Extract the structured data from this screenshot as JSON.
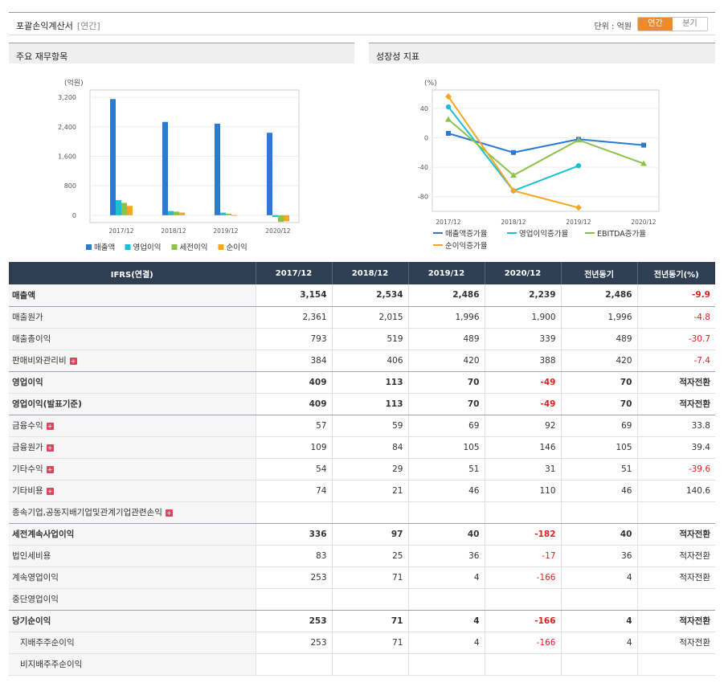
{
  "header": {
    "title": "포괄손익계산서",
    "subtitle": "[연간]",
    "unit": "단위 : 억원",
    "toggle": [
      "연간",
      "분기"
    ],
    "active": "연간"
  },
  "left_panel": {
    "title": "주요 재무항목"
  },
  "right_panel": {
    "title": "성장성 지표"
  },
  "colors": {
    "blue": "#2b7bd6",
    "cyan": "#1dbed6",
    "green": "#8bc34a",
    "orange": "#f5a623",
    "header_bg": "#2f3e52",
    "toggle_active": "#ec8a2e",
    "negative": "#e41e1e"
  },
  "chart_data": [
    {
      "type": "bar",
      "unit_label": "(억원)",
      "categories": [
        "2017/12",
        "2018/12",
        "2019/12",
        "2020/12"
      ],
      "ylim": [
        -200,
        3400
      ],
      "yticks": [
        0,
        800,
        1600,
        2400,
        3200
      ],
      "ytick_labels": [
        "0",
        "800",
        "1,600",
        "2,400",
        "3,200"
      ],
      "series": [
        {
          "name": "매출액",
          "values": [
            3154,
            2534,
            2486,
            2239
          ]
        },
        {
          "name": "영업이익",
          "values": [
            409,
            113,
            70,
            -49
          ]
        },
        {
          "name": "세전이익",
          "values": [
            336,
            97,
            40,
            -182
          ]
        },
        {
          "name": "순이익",
          "values": [
            253,
            71,
            4,
            -166
          ]
        }
      ],
      "legend_position": "bottom"
    },
    {
      "type": "line",
      "unit_label": "(%)",
      "categories": [
        "2017/12",
        "2018/12",
        "2019/12",
        "2020/12"
      ],
      "ylim": [
        -100,
        65
      ],
      "yticks": [
        40,
        0,
        -40,
        -80
      ],
      "series": [
        {
          "name": "매출액증가율",
          "values": [
            6,
            -20,
            -2,
            -10
          ]
        },
        {
          "name": "영업이익증가율",
          "values": [
            42,
            -72,
            -38,
            null
          ]
        },
        {
          "name": "EBITDA증가율",
          "values": [
            25,
            -51,
            -3,
            -35
          ]
        },
        {
          "name": "순이익증가율",
          "values": [
            56,
            -72,
            -95,
            null
          ]
        }
      ],
      "legend_position": "bottom"
    }
  ],
  "table": {
    "headers": [
      "IFRS(연결)",
      "2017/12",
      "2018/12",
      "2019/12",
      "2020/12",
      "전년동기",
      "전년동기(%)"
    ],
    "rows": [
      {
        "label": "매출액",
        "values": [
          "3,154",
          "2,534",
          "2,486",
          "2,239",
          "2,486",
          "-9.9"
        ],
        "bold": true,
        "sep": true
      },
      {
        "label": "매출원가",
        "values": [
          "2,361",
          "2,015",
          "1,996",
          "1,900",
          "1,996",
          "-4.8"
        ]
      },
      {
        "label": "매출총이익",
        "values": [
          "793",
          "519",
          "489",
          "339",
          "489",
          "-30.7"
        ]
      },
      {
        "label": "판매비와관리비",
        "values": [
          "384",
          "406",
          "420",
          "388",
          "420",
          "-7.4"
        ],
        "plus": true,
        "sep": true
      },
      {
        "label": "영업이익",
        "values": [
          "409",
          "113",
          "70",
          "-49",
          "70",
          "적자전환"
        ],
        "bold": true
      },
      {
        "label": "영업이익(발표기준)",
        "values": [
          "409",
          "113",
          "70",
          "-49",
          "70",
          "적자전환"
        ],
        "bold": true,
        "sep": true
      },
      {
        "label": "금융수익",
        "values": [
          "57",
          "59",
          "69",
          "92",
          "69",
          "33.8"
        ],
        "plus": true
      },
      {
        "label": "금융원가",
        "values": [
          "109",
          "84",
          "105",
          "146",
          "105",
          "39.4"
        ],
        "plus": true
      },
      {
        "label": "기타수익",
        "values": [
          "54",
          "29",
          "51",
          "31",
          "51",
          "-39.6"
        ],
        "plus": true
      },
      {
        "label": "기타비용",
        "values": [
          "74",
          "21",
          "46",
          "110",
          "46",
          "140.6"
        ],
        "plus": true
      },
      {
        "label": "종속기업,공동지배기업및관계기업관련손익",
        "values": [
          "",
          "",
          "",
          "",
          "",
          ""
        ],
        "plus": true,
        "sep": true
      },
      {
        "label": "세전계속사업이익",
        "values": [
          "336",
          "97",
          "40",
          "-182",
          "40",
          "적자전환"
        ],
        "bold": true
      },
      {
        "label": "법인세비용",
        "values": [
          "83",
          "25",
          "36",
          "-17",
          "36",
          "적자전환"
        ]
      },
      {
        "label": "계속영업이익",
        "values": [
          "253",
          "71",
          "4",
          "-166",
          "4",
          "적자전환"
        ]
      },
      {
        "label": "중단영업이익",
        "values": [
          "",
          "",
          "",
          "",
          "",
          ""
        ],
        "sep": true
      },
      {
        "label": "당기순이익",
        "values": [
          "253",
          "71",
          "4",
          "-166",
          "4",
          "적자전환"
        ],
        "bold": true
      },
      {
        "label": "지배주주순이익",
        "values": [
          "253",
          "71",
          "4",
          "-166",
          "4",
          "적자전환"
        ],
        "indent": true
      },
      {
        "label": "비지배주주순이익",
        "values": [
          "",
          "",
          "",
          "",
          "",
          ""
        ],
        "indent": true
      }
    ]
  }
}
